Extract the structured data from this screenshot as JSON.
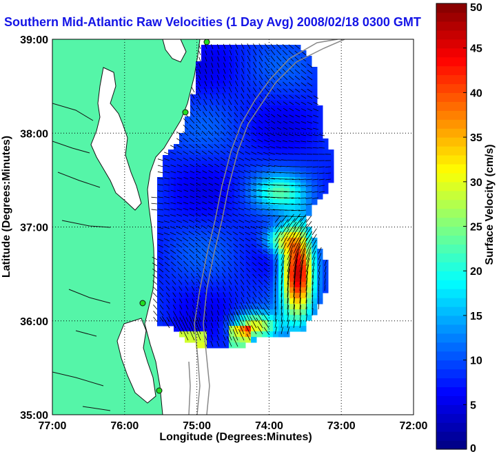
{
  "title": "Southern Mid-Atlantic Raw Velocities (1 Day Avg) 2008/02/18 0300 GMT",
  "map": {
    "xlabel": "Longitude (Degrees:Minutes)",
    "ylabel": "Latitude (Degrees:Minutes)",
    "x_ticks": [
      "77:00",
      "76:00",
      "75:00",
      "74:00",
      "73:00",
      "72:00"
    ],
    "y_ticks": [
      "39:00",
      "38:00",
      "37:00",
      "36:00",
      "35:00"
    ],
    "lon_range": [
      -77,
      -72
    ],
    "lat_range": [
      35,
      39
    ],
    "grid": "dotted",
    "land_color": "#55f5a8",
    "bathymetry_color": "#888888",
    "station_color": "#22dd22"
  },
  "colorbar": {
    "label": "Surface Velocity (cm/s)",
    "ticks": [
      "50",
      "45",
      "40",
      "35",
      "30",
      "25",
      "20",
      "15",
      "10",
      "5",
      "0"
    ],
    "range": [
      0,
      50
    ],
    "levels": 50,
    "colormap": "jet"
  }
}
